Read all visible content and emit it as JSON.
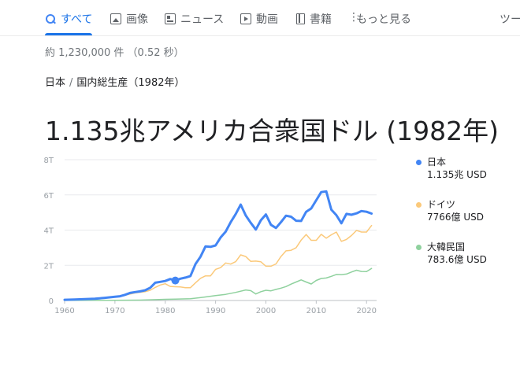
{
  "tabs": [
    {
      "label": "すべて",
      "icon": "search-icon"
    },
    {
      "label": "画像",
      "icon": "image-icon"
    },
    {
      "label": "ニュース",
      "icon": "news-icon"
    },
    {
      "label": "動画",
      "icon": "video-icon"
    },
    {
      "label": "書籍",
      "icon": "book-icon"
    },
    {
      "label": "もっと見る",
      "icon": "more-vert-icon"
    },
    {
      "label": "ツー"
    }
  ],
  "result_stats": "約 1,230,000 件 （0.52 秒）",
  "breadcrumb": [
    "日本",
    "国内総生産（1982年）"
  ],
  "answer": "1.135兆アメリカ合衆国ドル (1982年)",
  "legend": [
    {
      "name": "日本",
      "value": "1.135兆 USD",
      "color": "#4285f4"
    },
    {
      "name": "ドイツ",
      "value": "7766億 USD",
      "color": "#fbc97a"
    },
    {
      "name": "大韓民国",
      "value": "783.6億 USD",
      "color": "#8fd19e"
    }
  ],
  "colors": {
    "accent": "#1a73e8",
    "japan": "#4285f4",
    "germany": "#fbc97a",
    "korea": "#8fd19e"
  },
  "chart_data": {
    "type": "line",
    "ylim": [
      0,
      8
    ],
    "yticks": [
      "0",
      "2T",
      "4T",
      "6T",
      "8T"
    ],
    "xlim": [
      1960,
      2022
    ],
    "xticks": [
      "1960",
      "1970",
      "1980",
      "1990",
      "2000",
      "2010",
      "2020"
    ],
    "highlight": {
      "series": 0,
      "x": 1982,
      "y": 1.135
    },
    "series": [
      {
        "name": "日本",
        "color": "#4285f4",
        "width": 3,
        "points": [
          [
            1960,
            0.04
          ],
          [
            1962,
            0.06
          ],
          [
            1964,
            0.08
          ],
          [
            1966,
            0.1
          ],
          [
            1968,
            0.15
          ],
          [
            1970,
            0.21
          ],
          [
            1971,
            0.24
          ],
          [
            1972,
            0.32
          ],
          [
            1973,
            0.43
          ],
          [
            1974,
            0.48
          ],
          [
            1975,
            0.52
          ],
          [
            1976,
            0.58
          ],
          [
            1977,
            0.72
          ],
          [
            1978,
            1.01
          ],
          [
            1979,
            1.06
          ],
          [
            1980,
            1.11
          ],
          [
            1981,
            1.22
          ],
          [
            1982,
            1.135
          ],
          [
            1983,
            1.24
          ],
          [
            1984,
            1.3
          ],
          [
            1985,
            1.39
          ],
          [
            1986,
            2.07
          ],
          [
            1987,
            2.49
          ],
          [
            1988,
            3.07
          ],
          [
            1989,
            3.05
          ],
          [
            1990,
            3.13
          ],
          [
            1991,
            3.58
          ],
          [
            1992,
            3.91
          ],
          [
            1993,
            4.45
          ],
          [
            1994,
            4.91
          ],
          [
            1995,
            5.45
          ],
          [
            1996,
            4.83
          ],
          [
            1997,
            4.41
          ],
          [
            1998,
            4.03
          ],
          [
            1999,
            4.56
          ],
          [
            2000,
            4.89
          ],
          [
            2001,
            4.3
          ],
          [
            2002,
            4.12
          ],
          [
            2003,
            4.45
          ],
          [
            2004,
            4.82
          ],
          [
            2005,
            4.76
          ],
          [
            2006,
            4.53
          ],
          [
            2007,
            4.52
          ],
          [
            2008,
            5.04
          ],
          [
            2009,
            5.23
          ],
          [
            2010,
            5.7
          ],
          [
            2011,
            6.16
          ],
          [
            2012,
            6.2
          ],
          [
            2013,
            5.16
          ],
          [
            2014,
            4.85
          ],
          [
            2015,
            4.39
          ],
          [
            2016,
            4.92
          ],
          [
            2017,
            4.87
          ],
          [
            2018,
            4.95
          ],
          [
            2019,
            5.08
          ],
          [
            2020,
            5.04
          ],
          [
            2021,
            4.94
          ]
        ]
      },
      {
        "name": "ドイツ",
        "color": "#fbc97a",
        "width": 1.5,
        "points": [
          [
            1970,
            0.21
          ],
          [
            1972,
            0.3
          ],
          [
            1974,
            0.43
          ],
          [
            1976,
            0.5
          ],
          [
            1977,
            0.58
          ],
          [
            1978,
            0.74
          ],
          [
            1979,
            0.88
          ],
          [
            1980,
            0.95
          ],
          [
            1981,
            0.8
          ],
          [
            1982,
            0.78
          ],
          [
            1983,
            0.77
          ],
          [
            1984,
            0.73
          ],
          [
            1985,
            0.73
          ],
          [
            1986,
            1.0
          ],
          [
            1987,
            1.26
          ],
          [
            1988,
            1.4
          ],
          [
            1989,
            1.4
          ],
          [
            1990,
            1.77
          ],
          [
            1991,
            1.87
          ],
          [
            1992,
            2.13
          ],
          [
            1993,
            2.07
          ],
          [
            1994,
            2.21
          ],
          [
            1995,
            2.59
          ],
          [
            1996,
            2.5
          ],
          [
            1997,
            2.22
          ],
          [
            1998,
            2.24
          ],
          [
            1999,
            2.2
          ],
          [
            2000,
            1.95
          ],
          [
            2001,
            1.95
          ],
          [
            2002,
            2.08
          ],
          [
            2003,
            2.5
          ],
          [
            2004,
            2.82
          ],
          [
            2005,
            2.85
          ],
          [
            2006,
            3.0
          ],
          [
            2007,
            3.43
          ],
          [
            2008,
            3.75
          ],
          [
            2009,
            3.42
          ],
          [
            2010,
            3.42
          ],
          [
            2011,
            3.76
          ],
          [
            2012,
            3.54
          ],
          [
            2013,
            3.73
          ],
          [
            2014,
            3.89
          ],
          [
            2015,
            3.36
          ],
          [
            2016,
            3.47
          ],
          [
            2017,
            3.69
          ],
          [
            2018,
            3.98
          ],
          [
            2019,
            3.89
          ],
          [
            2020,
            3.89
          ],
          [
            2021,
            4.26
          ]
        ]
      },
      {
        "name": "大韓民国",
        "color": "#8fd19e",
        "width": 1.5,
        "points": [
          [
            1960,
            0.004
          ],
          [
            1965,
            0.01
          ],
          [
            1970,
            0.009
          ],
          [
            1975,
            0.022
          ],
          [
            1980,
            0.065
          ],
          [
            1982,
            0.078
          ],
          [
            1985,
            0.1
          ],
          [
            1988,
            0.2
          ],
          [
            1990,
            0.28
          ],
          [
            1992,
            0.35
          ],
          [
            1994,
            0.46
          ],
          [
            1996,
            0.6
          ],
          [
            1997,
            0.56
          ],
          [
            1998,
            0.37
          ],
          [
            1999,
            0.5
          ],
          [
            2000,
            0.58
          ],
          [
            2001,
            0.55
          ],
          [
            2002,
            0.63
          ],
          [
            2003,
            0.7
          ],
          [
            2004,
            0.79
          ],
          [
            2005,
            0.93
          ],
          [
            2006,
            1.05
          ],
          [
            2007,
            1.17
          ],
          [
            2008,
            1.05
          ],
          [
            2009,
            0.94
          ],
          [
            2010,
            1.14
          ],
          [
            2011,
            1.25
          ],
          [
            2012,
            1.28
          ],
          [
            2013,
            1.37
          ],
          [
            2014,
            1.48
          ],
          [
            2015,
            1.47
          ],
          [
            2016,
            1.5
          ],
          [
            2017,
            1.62
          ],
          [
            2018,
            1.72
          ],
          [
            2019,
            1.65
          ],
          [
            2020,
            1.64
          ],
          [
            2021,
            1.82
          ]
        ]
      }
    ]
  }
}
